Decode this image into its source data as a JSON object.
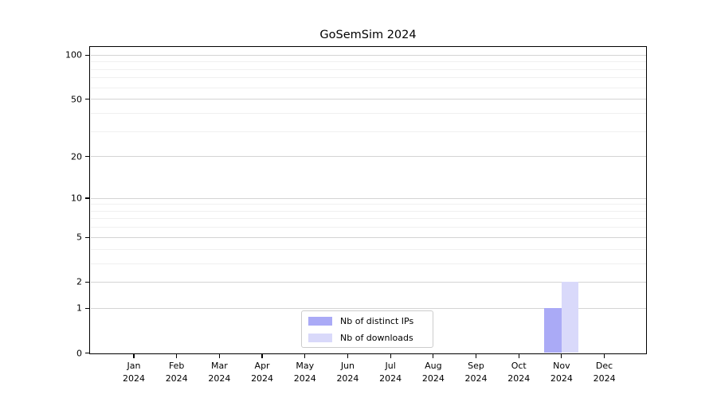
{
  "chart_data": {
    "type": "bar",
    "title": "GoSemSim 2024",
    "categories": [
      "Jan 2024",
      "Feb 2024",
      "Mar 2024",
      "Apr 2024",
      "May 2024",
      "Jun 2024",
      "Jul 2024",
      "Aug 2024",
      "Sep 2024",
      "Oct 2024",
      "Nov 2024",
      "Dec 2024"
    ],
    "series": [
      {
        "name": "Nb of distinct IPs",
        "color": "#aaaaf6",
        "values": [
          0,
          0,
          0,
          0,
          0,
          0,
          0,
          0,
          0,
          0,
          1,
          0
        ]
      },
      {
        "name": "Nb of downloads",
        "color": "#d9d9fa",
        "values": [
          0,
          0,
          0,
          0,
          0,
          0,
          0,
          0,
          0,
          0,
          2,
          0
        ]
      }
    ],
    "yscale": "log1p",
    "major_yticks": [
      0,
      1,
      2,
      5,
      10,
      20,
      50,
      100
    ],
    "minor_yticks": [
      3,
      4,
      6,
      7,
      8,
      9,
      30,
      40,
      60,
      70,
      80,
      90
    ],
    "ylim": [
      0,
      113
    ],
    "xlabel": "",
    "ylabel": "",
    "grid": true,
    "legend_position": "lower center",
    "colors": {
      "grid_major": "#d4d4d4",
      "grid_minor": "#f0f0f0",
      "spine": "#000000",
      "tick_label": "#000000",
      "legend_border": "#cccccc",
      "background": "#ffffff"
    }
  }
}
